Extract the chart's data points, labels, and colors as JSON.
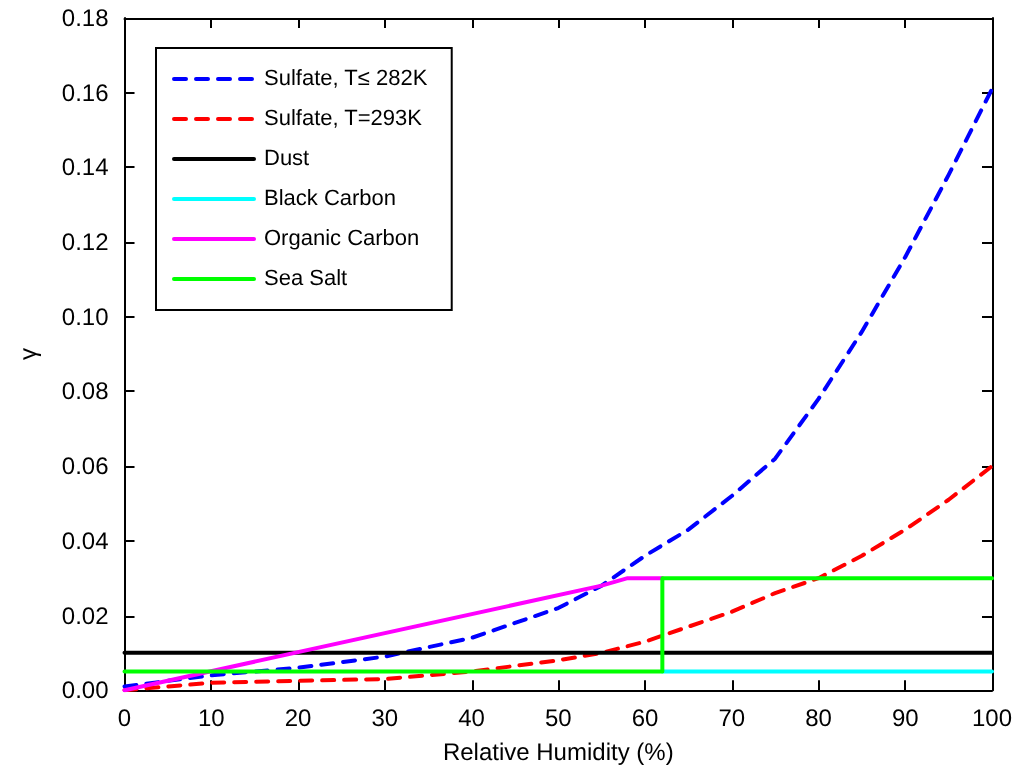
{
  "chart_data": {
    "type": "line",
    "xlabel": "Relative Humidity (%)",
    "ylabel": "γ",
    "xlim": [
      0,
      100
    ],
    "xticks": [
      0,
      10,
      20,
      30,
      40,
      50,
      60,
      70,
      80,
      90,
      100
    ],
    "ylim": [
      0,
      0.18
    ],
    "yticks": [
      {
        "value": 0,
        "label": "0.00"
      },
      {
        "value": 0.02,
        "label": "0.02"
      },
      {
        "value": 0.04,
        "label": "0.04"
      },
      {
        "value": 0.06,
        "label": "0.06"
      },
      {
        "value": 0.08,
        "label": "0.08"
      },
      {
        "value": 0.1,
        "label": "0.10"
      },
      {
        "value": 0.12,
        "label": "0.12"
      },
      {
        "value": 0.14,
        "label": "0.14"
      },
      {
        "value": 0.16,
        "label": "0.16"
      },
      {
        "value": 0.18,
        "label": "0.18"
      }
    ],
    "grid": false,
    "legend": "top left",
    "marker": "none",
    "series": [
      {
        "name": "Sulfate, T≤ 282K",
        "color": "#0000ff",
        "line_style": "dashed",
        "x": [
          0,
          10,
          20,
          30,
          40,
          50,
          55,
          60,
          65,
          70,
          75,
          80,
          85,
          90,
          95,
          100
        ],
        "values": [
          0.001,
          0.004,
          0.006,
          0.009,
          0.014,
          0.022,
          0.028,
          0.036,
          0.043,
          0.052,
          0.062,
          0.078,
          0.096,
          0.116,
          0.138,
          0.161
        ]
      },
      {
        "name": "Sulfate, T=293K",
        "color": "#ff0000",
        "line_style": "dashed",
        "x": [
          0,
          5,
          10,
          20,
          30,
          40,
          50,
          55,
          60,
          65,
          70,
          75,
          80,
          85,
          90,
          95,
          100
        ],
        "values": [
          0,
          0.001,
          0.002,
          0.0025,
          0.003,
          0.005,
          0.008,
          0.01,
          0.013,
          0.017,
          0.021,
          0.026,
          0.03,
          0.036,
          0.043,
          0.051,
          0.06
        ]
      },
      {
        "name": "Dust",
        "color": "#000000",
        "line_style": "solid",
        "x": [
          0,
          100
        ],
        "values": [
          0.01,
          0.01
        ]
      },
      {
        "name": "Black Carbon",
        "color": "#00ffff",
        "line_style": "solid",
        "x": [
          62,
          100
        ],
        "values": [
          0.005,
          0.005
        ]
      },
      {
        "name": "Organic Carbon",
        "color": "#ff00ff",
        "line_style": "solid",
        "x": [
          0,
          55,
          58,
          62
        ],
        "values": [
          0,
          0.028,
          0.03,
          0.03
        ]
      },
      {
        "name": "Sea Salt",
        "color": "#00ff00",
        "line_style": "solid",
        "x": [
          0,
          30,
          62,
          62,
          80,
          100
        ],
        "values": [
          0.005,
          0.005,
          0.005,
          0.03,
          0.03,
          0.03
        ]
      }
    ]
  }
}
